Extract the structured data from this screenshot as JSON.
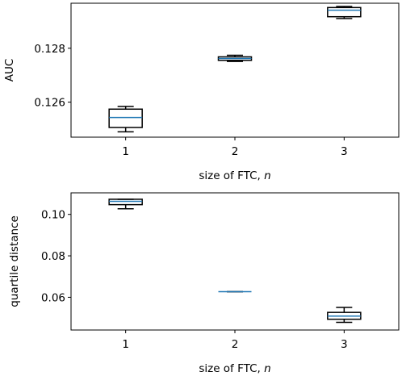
{
  "chart_data": [
    {
      "type": "box",
      "xlabel": "size of FTC, n",
      "xlabel_text": "size of FTC, ",
      "xlabel_var": "n",
      "ylabel": "AUC",
      "categories": [
        "1",
        "2",
        "3"
      ],
      "xlim": [
        0.5,
        3.5
      ],
      "ylim": [
        0.1247,
        0.12967
      ],
      "yticks": [
        0.126,
        0.128
      ],
      "ytick_labels": [
        "0.126",
        "0.128"
      ],
      "boxes": [
        {
          "category": "1",
          "whislo": 0.1249,
          "q1": 0.12506,
          "median": 0.12543,
          "q3": 0.12574,
          "whishi": 0.12584
        },
        {
          "category": "2",
          "whislo": 0.12751,
          "q1": 0.12755,
          "median": 0.12762,
          "q3": 0.12768,
          "whishi": 0.12774
        },
        {
          "category": "3",
          "whislo": 0.1291,
          "q1": 0.12917,
          "median": 0.12941,
          "q3": 0.12951,
          "whishi": 0.12955
        }
      ],
      "median_color": "#1f77b4",
      "box_color": "#000000"
    },
    {
      "type": "box",
      "xlabel": "size of FTC, n",
      "xlabel_text": "size of FTC, ",
      "xlabel_var": "n",
      "ylabel": "quartile distance",
      "categories": [
        "1",
        "2",
        "3"
      ],
      "xlim": [
        0.5,
        3.5
      ],
      "ylim": [
        0.0442,
        0.1104
      ],
      "yticks": [
        0.06,
        0.08,
        0.1
      ],
      "ytick_labels": [
        "0.06",
        "0.08",
        "0.10"
      ],
      "boxes": [
        {
          "category": "1",
          "whislo": 0.1027,
          "q1": 0.1047,
          "median": 0.1063,
          "q3": 0.1073,
          "whishi": 0.1073
        },
        {
          "category": "2",
          "whislo": 0.0627,
          "q1": 0.0627,
          "median": 0.0627,
          "q3": 0.0627,
          "whishi": 0.0627
        },
        {
          "category": "3",
          "whislo": 0.0479,
          "q1": 0.0494,
          "median": 0.0509,
          "q3": 0.0527,
          "whishi": 0.0551
        }
      ],
      "median_color": "#1f77b4",
      "box_color": "#000000"
    }
  ]
}
